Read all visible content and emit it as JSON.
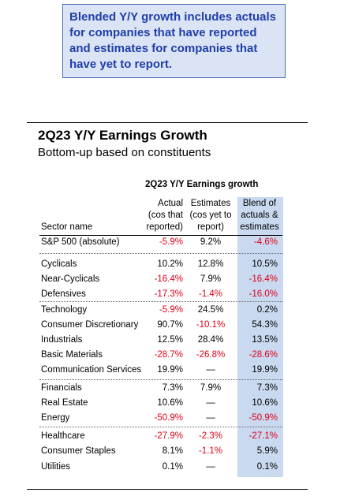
{
  "callout": "Blended Y/Y growth includes actuals for companies that have reported and estimates for companies that have yet to report.",
  "title": "2Q23 Y/Y Earnings Growth",
  "subtitle": "Bottom-up based on constituents",
  "table": {
    "title": "2Q23 Y/Y Earnings growth",
    "headers": {
      "sector": "Sector name",
      "actual": [
        "Actual",
        "(cos that",
        "reported)"
      ],
      "estimates": [
        "Estimates",
        "(cos yet to",
        "report)"
      ],
      "blend": [
        "Blend of",
        "actuals &",
        "estimates"
      ]
    },
    "rows": [
      {
        "name": "S&P 500 (absolute)",
        "actual": "-5.9%",
        "est": "9.2%",
        "blend": "-4.6%"
      },
      {
        "name": "Cyclicals",
        "actual": "10.2%",
        "est": "12.8%",
        "blend": "10.5%"
      },
      {
        "name": "Near-Cyclicals",
        "actual": "-16.4%",
        "est": "7.9%",
        "blend": "-16.4%"
      },
      {
        "name": "Defensives",
        "actual": "-17.3%",
        "est": "-1.4%",
        "blend": "-16.0%"
      },
      {
        "name": "Technology",
        "actual": "-5.9%",
        "est": "24.5%",
        "blend": "0.2%"
      },
      {
        "name": "Consumer Discretionary",
        "actual": "90.7%",
        "est": "-10.1%",
        "blend": "54.3%"
      },
      {
        "name": "Industrials",
        "actual": "12.5%",
        "est": "28.4%",
        "blend": "13.5%"
      },
      {
        "name": "Basic Materials",
        "actual": "-28.7%",
        "est": "-26.8%",
        "blend": "-28.6%"
      },
      {
        "name": "Communication Services",
        "actual": "19.9%",
        "est": "—",
        "blend": "19.9%"
      },
      {
        "name": "Financials",
        "actual": "7.3%",
        "est": "7.9%",
        "blend": "7.3%"
      },
      {
        "name": "Real Estate",
        "actual": "10.6%",
        "est": "—",
        "blend": "10.6%"
      },
      {
        "name": "Energy",
        "actual": "-50.9%",
        "est": "—",
        "blend": "-50.9%"
      },
      {
        "name": "Healthcare",
        "actual": "-27.9%",
        "est": "-2.3%",
        "blend": "-27.1%"
      },
      {
        "name": "Consumer Staples",
        "actual": "8.1%",
        "est": "-1.1%",
        "blend": "5.9%"
      },
      {
        "name": "Utilities",
        "actual": "0.1%",
        "est": "—",
        "blend": "0.1%"
      }
    ]
  },
  "colors": {
    "negative": "#e0001b",
    "callout_text": "#1f3fa8",
    "blend_column": "#c9d9ef"
  }
}
